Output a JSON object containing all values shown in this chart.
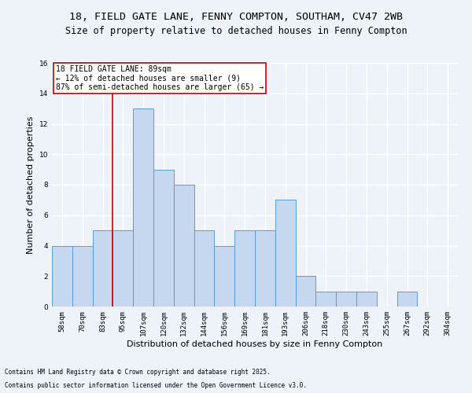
{
  "title_line1": "18, FIELD GATE LANE, FENNY COMPTON, SOUTHAM, CV47 2WB",
  "title_line2": "Size of property relative to detached houses in Fenny Compton",
  "categories": [
    "58sqm",
    "70sqm",
    "83sqm",
    "95sqm",
    "107sqm",
    "120sqm",
    "132sqm",
    "144sqm",
    "156sqm",
    "169sqm",
    "181sqm",
    "193sqm",
    "206sqm",
    "218sqm",
    "230sqm",
    "243sqm",
    "255sqm",
    "267sqm",
    "292sqm",
    "304sqm"
  ],
  "values": [
    4,
    4,
    5,
    5,
    13,
    9,
    8,
    5,
    4,
    5,
    5,
    7,
    2,
    1,
    1,
    1,
    0,
    1,
    0,
    0
  ],
  "bar_color": "#c5d8f0",
  "bar_edge_color": "#5b9bd5",
  "xlabel": "Distribution of detached houses by size in Fenny Compton",
  "ylabel": "Number of detached properties",
  "ylim": [
    0,
    16
  ],
  "yticks": [
    0,
    2,
    4,
    6,
    8,
    10,
    12,
    14,
    16
  ],
  "annotation_box_text": "18 FIELD GATE LANE: 89sqm\n← 12% of detached houses are smaller (9)\n87% of semi-detached houses are larger (65) →",
  "annotation_box_color": "#ffffff",
  "annotation_box_edge_color": "#cc0000",
  "vline_x_index": 2.5,
  "vline_color": "#cc0000",
  "footnote1": "Contains HM Land Registry data © Crown copyright and database right 2025.",
  "footnote2": "Contains public sector information licensed under the Open Government Licence v3.0.",
  "bg_color": "#eef2f9",
  "grid_color": "#ffffff",
  "title_fontsize": 9.5,
  "subtitle_fontsize": 8.5,
  "tick_fontsize": 6.5,
  "ylabel_fontsize": 8,
  "xlabel_fontsize": 8,
  "footnote_fontsize": 5.5,
  "annotation_fontsize": 7
}
